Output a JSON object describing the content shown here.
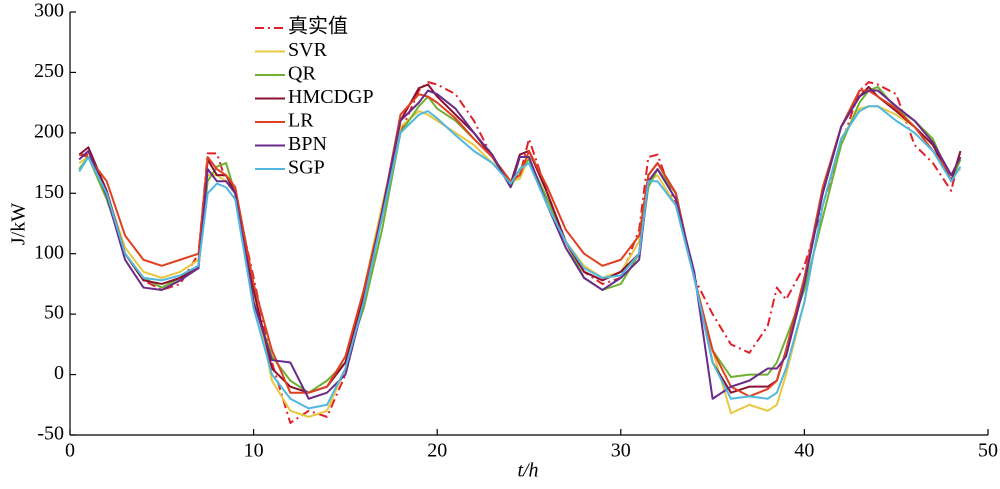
{
  "chart_data": {
    "type": "line",
    "xlabel": "t/h",
    "ylabel": "J/kW",
    "xlim": [
      0,
      50
    ],
    "xticks": [
      0,
      10,
      20,
      30,
      40,
      50
    ],
    "ylim": [
      -50,
      300
    ],
    "yticks": [
      -50,
      0,
      50,
      100,
      150,
      200,
      250,
      300
    ],
    "legend": "upper left",
    "x": [
      0.5,
      1,
      2,
      3,
      4,
      5,
      6,
      7,
      7.5,
      8,
      8.5,
      9,
      10,
      11,
      12,
      13,
      14,
      15,
      16,
      17,
      18,
      19,
      19.5,
      20,
      21,
      22,
      23,
      24,
      24.5,
      25,
      26,
      27,
      28,
      29,
      30,
      31,
      31.5,
      32,
      33,
      34,
      35,
      36,
      37,
      38,
      38.5,
      39,
      40,
      41,
      42,
      43,
      43.5,
      44,
      45,
      46,
      47,
      48,
      48.5
    ],
    "series": [
      {
        "name": "真实值",
        "color": "#e0202a",
        "line_style": "dashdot",
        "values": [
          182,
          182,
          150,
          100,
          78,
          70,
          75,
          100,
          183,
          183,
          160,
          150,
          80,
          10,
          -40,
          -30,
          -35,
          0,
          60,
          130,
          200,
          235,
          242,
          240,
          232,
          210,
          180,
          160,
          165,
          195,
          150,
          110,
          85,
          75,
          80,
          120,
          180,
          182,
          140,
          80,
          50,
          25,
          18,
          40,
          72,
          62,
          90,
          140,
          190,
          235,
          242,
          240,
          232,
          190,
          175,
          152,
          185
        ]
      },
      {
        "name": "SVR",
        "color": "#e8c840",
        "values": [
          175,
          180,
          150,
          105,
          85,
          80,
          85,
          95,
          165,
          165,
          160,
          150,
          70,
          -5,
          -30,
          -35,
          -30,
          5,
          70,
          140,
          205,
          218,
          215,
          210,
          200,
          190,
          175,
          160,
          162,
          180,
          140,
          110,
          90,
          80,
          85,
          110,
          160,
          165,
          140,
          80,
          20,
          -32,
          -25,
          -30,
          -25,
          0,
          60,
          140,
          195,
          220,
          222,
          222,
          215,
          205,
          190,
          165,
          170
        ]
      },
      {
        "name": "QR",
        "color": "#70b030",
        "values": [
          170,
          180,
          145,
          100,
          80,
          72,
          80,
          90,
          160,
          172,
          175,
          150,
          60,
          15,
          -5,
          -15,
          -5,
          10,
          55,
          120,
          200,
          222,
          230,
          220,
          210,
          195,
          180,
          155,
          170,
          178,
          145,
          110,
          80,
          70,
          75,
          100,
          155,
          170,
          150,
          80,
          20,
          -2,
          0,
          0,
          10,
          30,
          70,
          130,
          190,
          225,
          235,
          238,
          220,
          210,
          195,
          160,
          178
        ]
      },
      {
        "name": "HMCDGP",
        "color": "#8b1030",
        "values": [
          182,
          188,
          152,
          100,
          78,
          75,
          80,
          90,
          178,
          165,
          165,
          150,
          70,
          5,
          -10,
          -15,
          -10,
          10,
          65,
          135,
          210,
          237,
          240,
          230,
          215,
          200,
          180,
          158,
          182,
          185,
          150,
          110,
          85,
          78,
          85,
          100,
          165,
          175,
          150,
          80,
          10,
          -15,
          -10,
          -10,
          -5,
          20,
          80,
          150,
          205,
          230,
          238,
          230,
          218,
          205,
          190,
          160,
          185
        ]
      },
      {
        "name": "LR",
        "color": "#e04020",
        "values": [
          182,
          180,
          160,
          115,
          95,
          90,
          95,
          100,
          180,
          170,
          165,
          155,
          75,
          20,
          -15,
          -15,
          -10,
          15,
          70,
          135,
          215,
          232,
          230,
          225,
          212,
          195,
          180,
          160,
          165,
          185,
          155,
          120,
          100,
          90,
          95,
          115,
          165,
          175,
          150,
          80,
          20,
          -10,
          -18,
          -12,
          -5,
          20,
          80,
          155,
          205,
          235,
          235,
          230,
          220,
          205,
          185,
          165,
          180
        ]
      },
      {
        "name": "BPN",
        "color": "#6a2a8a",
        "values": [
          178,
          185,
          148,
          95,
          72,
          70,
          78,
          88,
          170,
          160,
          160,
          150,
          60,
          12,
          10,
          -20,
          -15,
          0,
          60,
          135,
          210,
          225,
          235,
          232,
          220,
          200,
          182,
          155,
          180,
          180,
          140,
          105,
          80,
          70,
          80,
          95,
          160,
          170,
          145,
          85,
          -20,
          -10,
          -5,
          5,
          5,
          15,
          75,
          150,
          205,
          230,
          235,
          235,
          222,
          210,
          192,
          165,
          180
        ]
      },
      {
        "name": "SGP",
        "color": "#50b8e0",
        "values": [
          168,
          180,
          150,
          100,
          80,
          78,
          82,
          90,
          150,
          158,
          155,
          145,
          55,
          0,
          -20,
          -28,
          -25,
          5,
          60,
          130,
          200,
          215,
          218,
          212,
          198,
          185,
          175,
          158,
          170,
          175,
          140,
          110,
          88,
          80,
          82,
          100,
          160,
          160,
          140,
          80,
          10,
          -20,
          -18,
          -20,
          -15,
          5,
          60,
          140,
          195,
          218,
          222,
          222,
          210,
          200,
          185,
          160,
          172
        ]
      }
    ]
  }
}
